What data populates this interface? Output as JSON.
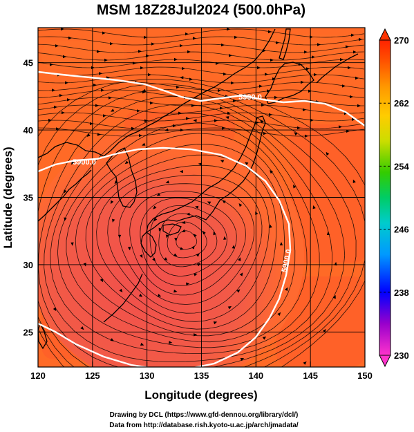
{
  "title": "MSM 18Z28Jul2024 (500.0hPa)",
  "x_axis": {
    "label": "Longitude (degrees)",
    "ticks": [
      "120",
      "125",
      "130",
      "135",
      "140",
      "145",
      "150"
    ],
    "range": [
      120,
      150
    ]
  },
  "y_axis": {
    "label": "Latitude  (degrees)",
    "ticks": [
      "25",
      "30",
      "35",
      "40",
      "45"
    ],
    "range": [
      22.4,
      47.6
    ]
  },
  "colorbar": {
    "ticks": [
      "270",
      "262",
      "254",
      "246",
      "238",
      "230"
    ],
    "range": [
      230,
      270
    ],
    "colors": [
      "#ff33cc",
      "#9900cc",
      "#0000ff",
      "#0099ff",
      "#00cccc",
      "#00cc66",
      "#33cc00",
      "#ccdd00",
      "#ffcc00",
      "#ff9900",
      "#ff5500",
      "#ff2200"
    ]
  },
  "contours": {
    "level_label": "5900.0",
    "color": "#ffffff"
  },
  "field_colors": {
    "warm": "#ff5a2a",
    "warmer": "#ff7028",
    "core": "#f25050"
  },
  "vortex_center": {
    "lon": 133.6,
    "lat": 31.8
  },
  "credits": {
    "line1": "Drawing by DCL (https://www.gfd-dennou.org/library/dcl/)",
    "line2": "Data from http://database.rish.kyoto-u.ac.jp/arch/jmadata/"
  }
}
